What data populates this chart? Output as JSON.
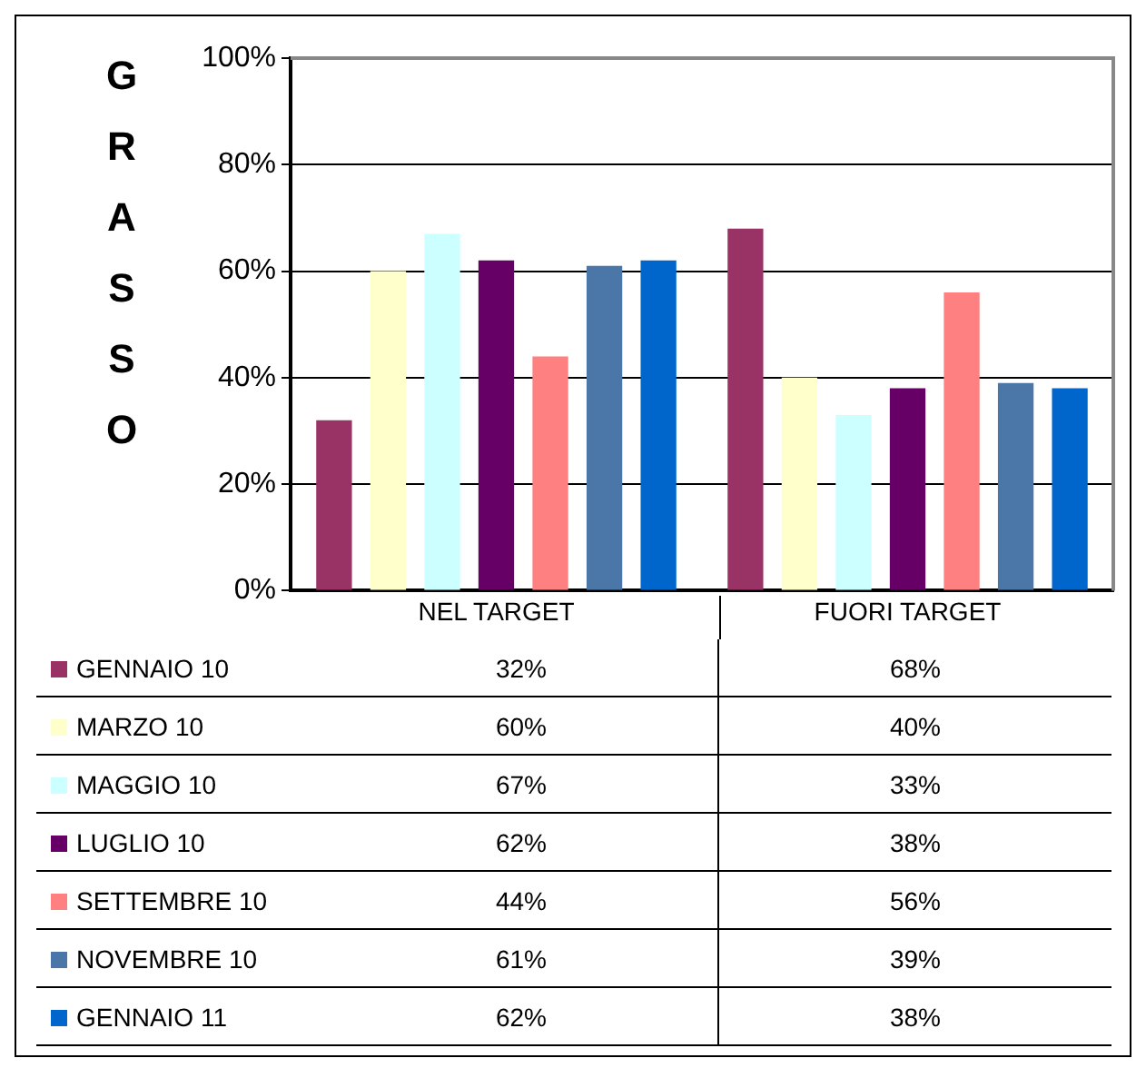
{
  "chart_data": {
    "type": "bar",
    "ylabel": "GRASSO",
    "categories": [
      "NEL TARGET",
      "FUORI TARGET"
    ],
    "series": [
      {
        "name": "GENNAIO 10",
        "color": "#993366",
        "values": [
          32,
          68
        ],
        "value_labels": [
          "32%",
          "68%"
        ]
      },
      {
        "name": "MARZO 10",
        "color": "#ffffcc",
        "values": [
          60,
          40
        ],
        "value_labels": [
          "60%",
          "40%"
        ]
      },
      {
        "name": "MAGGIO 10",
        "color": "#ccffff",
        "values": [
          67,
          33
        ],
        "value_labels": [
          "67%",
          "33%"
        ]
      },
      {
        "name": "LUGLIO 10",
        "color": "#660066",
        "values": [
          62,
          38
        ],
        "value_labels": [
          "62%",
          "38%"
        ]
      },
      {
        "name": "SETTEMBRE 10",
        "color": "#ff8080",
        "values": [
          44,
          56
        ],
        "value_labels": [
          "44%",
          "56%"
        ]
      },
      {
        "name": "NOVEMBRE 10",
        "color": "#4a76a8",
        "values": [
          61,
          39
        ],
        "value_labels": [
          "61%",
          "39%"
        ]
      },
      {
        "name": "GENNAIO 11",
        "color": "#0066cc",
        "values": [
          62,
          38
        ],
        "value_labels": [
          "62%",
          "38%"
        ]
      }
    ],
    "ylim": [
      0,
      100
    ],
    "yticks": [
      {
        "value": 0,
        "label": "0%"
      },
      {
        "value": 20,
        "label": "20%"
      },
      {
        "value": 40,
        "label": "40%"
      },
      {
        "value": 60,
        "label": "60%"
      },
      {
        "value": 80,
        "label": "80%"
      },
      {
        "value": 100,
        "label": "100%"
      }
    ],
    "grid": "y",
    "legend": "bottom"
  }
}
